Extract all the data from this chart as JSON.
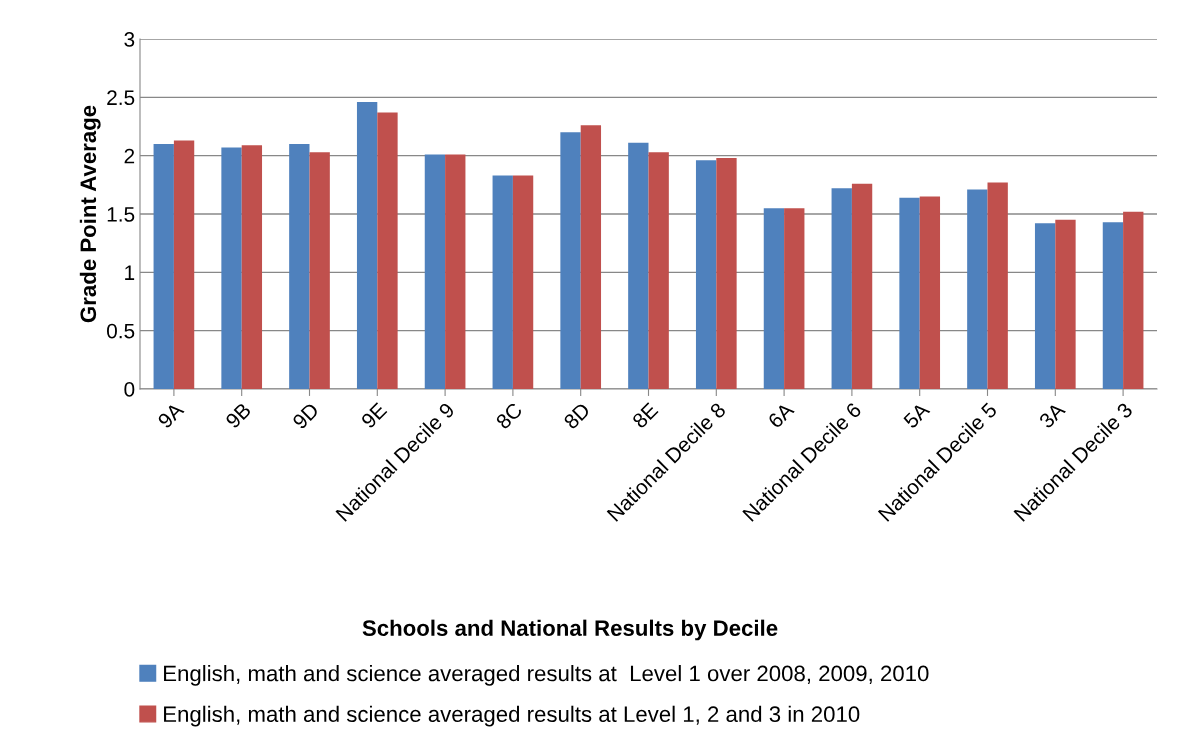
{
  "chart_data": {
    "type": "bar",
    "xlabel": "Schools and National Results by Decile",
    "ylabel": "Grade Point Average",
    "categories": [
      "9A",
      "9B",
      "9D",
      "9E",
      "National Decile 9",
      "8C",
      "8D",
      "8E",
      "National Decile 8",
      "6A",
      "National Decile 6",
      "5A",
      "National Decile 5",
      "3A",
      "National Decile 3"
    ],
    "series": [
      {
        "name": "English, math and science averaged results at  Level 1 over 2008, 2009, 2010",
        "color": "#4f81bd",
        "values": [
          2.1,
          2.07,
          2.1,
          2.46,
          2.01,
          1.83,
          2.2,
          2.11,
          1.96,
          1.55,
          1.72,
          1.64,
          1.71,
          1.42,
          1.43
        ]
      },
      {
        "name": "English, math and science averaged results at Level 1, 2 and 3 in 2010",
        "color": "#c0504d",
        "values": [
          2.13,
          2.09,
          2.03,
          2.37,
          2.01,
          1.83,
          2.26,
          2.03,
          1.98,
          1.55,
          1.76,
          1.65,
          1.77,
          1.45,
          1.52
        ]
      }
    ],
    "ylim": [
      0,
      3
    ],
    "yticks": [
      0,
      0.5,
      1,
      1.5,
      2,
      2.5,
      3
    ],
    "grid": "y",
    "legend": "bottom"
  }
}
